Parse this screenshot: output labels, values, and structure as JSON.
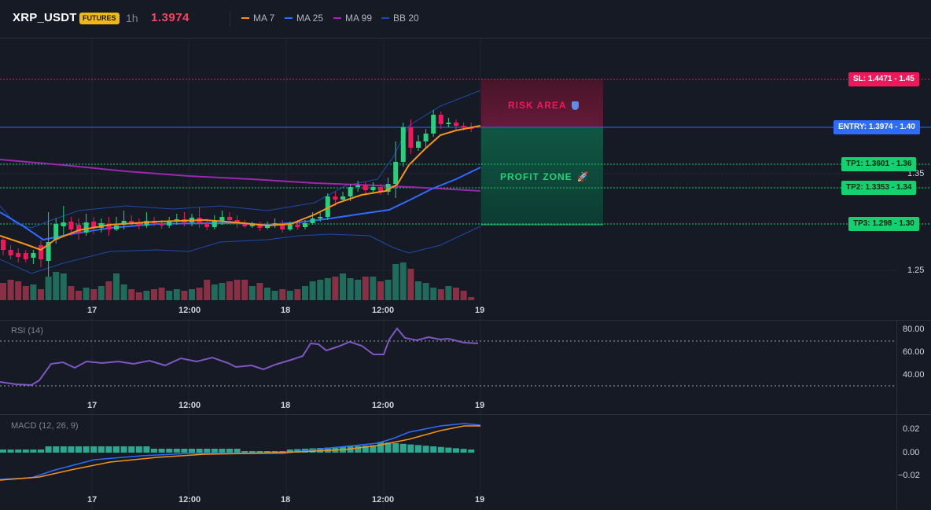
{
  "header": {
    "symbol": "XRP_USDT",
    "badge": "FUTURES",
    "interval": "1h",
    "last_price": "1.3974",
    "legend": [
      {
        "label": "MA 7",
        "color": "#f7931a"
      },
      {
        "label": "MA 25",
        "color": "#2f6bff"
      },
      {
        "label": "MA 99",
        "color": "#9c27b0"
      },
      {
        "label": "BB 20",
        "color": "#1e4aa8"
      }
    ]
  },
  "price_axis": {
    "ticks": [
      "1.35",
      "1.25"
    ]
  },
  "levels": {
    "sl": {
      "label": "SL: 1.4471 - 1.45",
      "color": "#f0185a"
    },
    "entry": {
      "label": "ENTRY: 1.3974 - 1.40",
      "color": "#2f6bff"
    },
    "tp1": {
      "label": "TP1: 1.3601 - 1.36",
      "color": "#14d06e"
    },
    "tp2": {
      "label": "TP2: 1.3353 - 1.34",
      "color": "#14d06e"
    },
    "tp3": {
      "label": "TP3: 1.298 - 1.30",
      "color": "#14d06e"
    }
  },
  "zones": {
    "risk": {
      "label": "RISK AREA",
      "icon": "shield-icon"
    },
    "profit": {
      "label": "PROFIT ZONE",
      "icon": "rocket-icon"
    }
  },
  "time_axis": [
    "17",
    "12:00",
    "18",
    "12:00",
    "19"
  ],
  "rsi": {
    "title": "RSI (14)",
    "ticks": [
      "80.00",
      "60.00",
      "40.00"
    ]
  },
  "macd": {
    "title": "MACD (12, 26, 9)",
    "ticks": [
      "0.02",
      "0.00",
      "−0.02"
    ]
  },
  "colors": {
    "up": "#26d07c",
    "down": "#f0185a",
    "rsi_line": "#7e57c2",
    "macd_line": "#2f6bff",
    "signal_line": "#f7931a",
    "macd_hist": "#2aa890"
  }
}
